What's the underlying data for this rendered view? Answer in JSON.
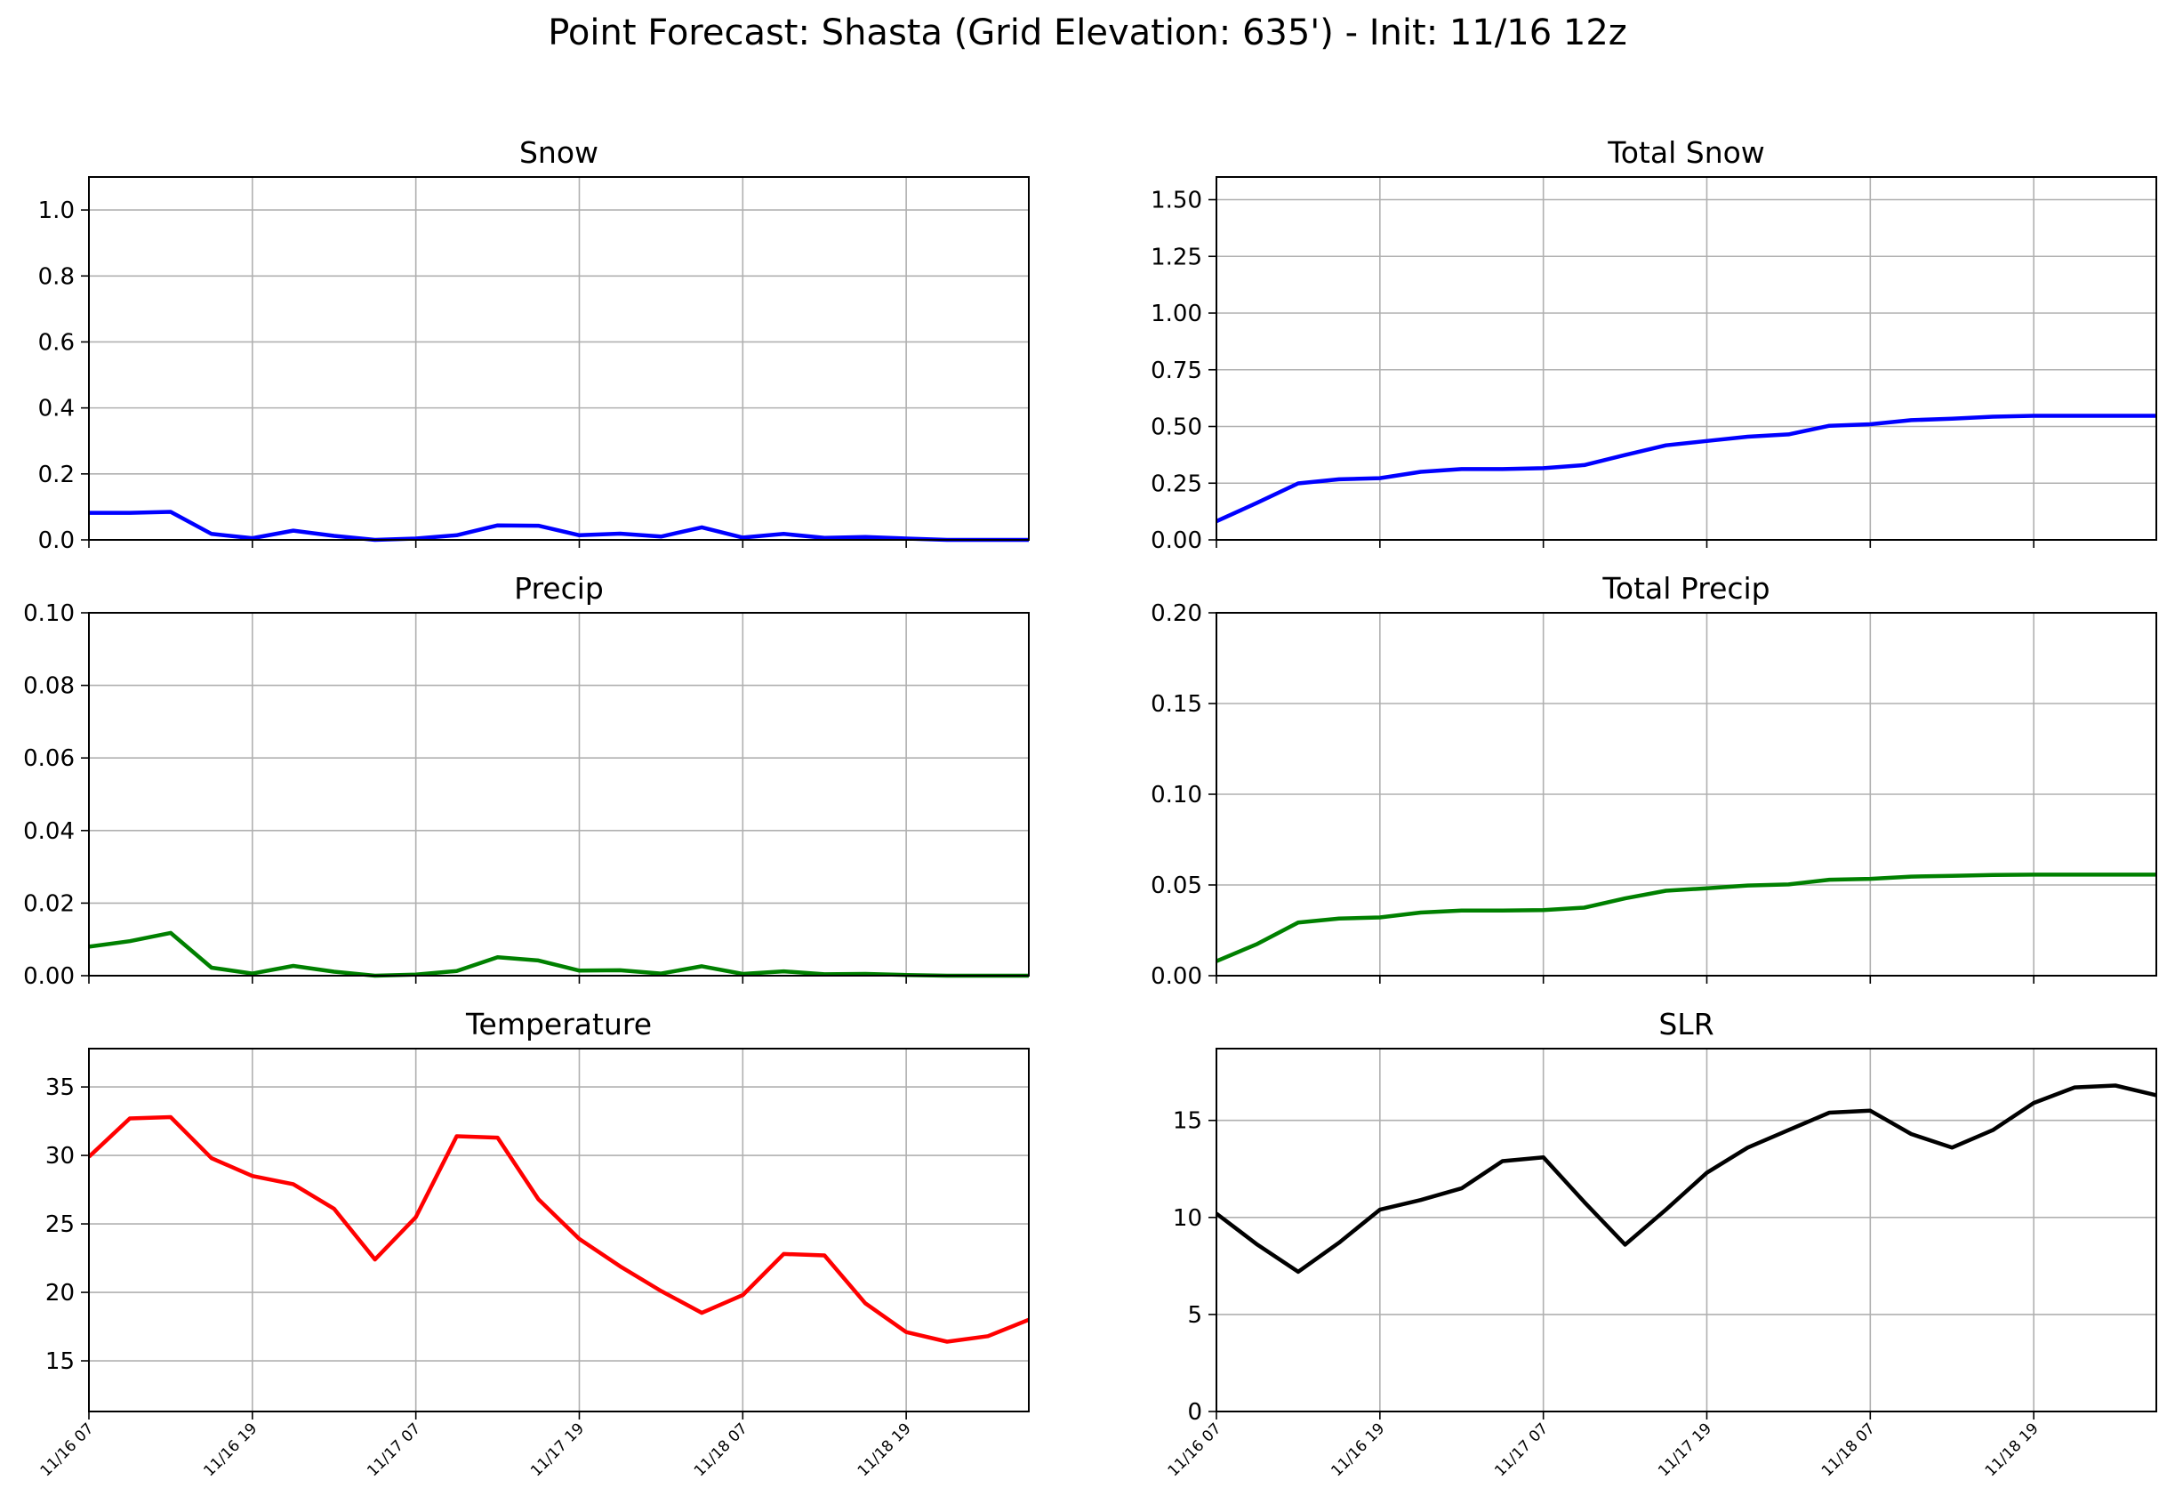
{
  "figure": {
    "title": "Point Forecast: Shasta (Grid Elevation: 635') - Init: 11/16 12z",
    "x_tick_labels": [
      "11/16 07",
      "11/16 19",
      "11/17 07",
      "11/17 19",
      "11/18 07",
      "11/18 19"
    ]
  },
  "chart_data": [
    {
      "id": "snow",
      "type": "line",
      "title": "Snow",
      "color": "#0000ff",
      "grid": true,
      "xlim": [
        0,
        69
      ],
      "ylim": [
        0,
        1.1
      ],
      "yticks": [
        0,
        0.2,
        0.4,
        0.6,
        0.8,
        1.0
      ],
      "ytick_labels": [
        "0.0",
        "0.2",
        "0.4",
        "0.6",
        "0.8",
        "1.0"
      ],
      "x_hours": [
        0,
        3,
        6,
        9,
        12,
        15,
        18,
        21,
        24,
        27,
        30,
        33,
        36,
        39,
        42,
        45,
        48,
        51,
        54,
        57,
        60,
        63,
        66,
        69
      ],
      "values": [
        0.082,
        0.082,
        0.085,
        0.018,
        0.005,
        0.028,
        0.012,
        0.0,
        0.004,
        0.014,
        0.044,
        0.043,
        0.014,
        0.019,
        0.01,
        0.038,
        0.007,
        0.018,
        0.006,
        0.009,
        0.004,
        0.0,
        0.0,
        0.0
      ],
      "show_xlabels": false
    },
    {
      "id": "total-snow",
      "type": "line",
      "title": "Total Snow",
      "color": "#0000ff",
      "grid": true,
      "xlim": [
        0,
        69
      ],
      "ylim": [
        0,
        1.6
      ],
      "yticks": [
        0,
        0.25,
        0.5,
        0.75,
        1.0,
        1.25,
        1.5
      ],
      "ytick_labels": [
        "0.00",
        "0.25",
        "0.50",
        "0.75",
        "1.00",
        "1.25",
        "1.50"
      ],
      "x_hours": [
        0,
        3,
        6,
        9,
        12,
        15,
        18,
        21,
        24,
        27,
        30,
        33,
        36,
        39,
        42,
        45,
        48,
        51,
        54,
        57,
        60,
        63,
        66,
        69
      ],
      "values": [
        0.082,
        0.164,
        0.249,
        0.267,
        0.272,
        0.3,
        0.312,
        0.312,
        0.316,
        0.33,
        0.374,
        0.417,
        0.436,
        0.455,
        0.465,
        0.503,
        0.51,
        0.528,
        0.534,
        0.543,
        0.547,
        0.547,
        0.547,
        0.547
      ],
      "show_xlabels": false
    },
    {
      "id": "precip",
      "type": "line",
      "title": "Precip",
      "color": "#008000",
      "grid": true,
      "xlim": [
        0,
        69
      ],
      "ylim": [
        0,
        0.1
      ],
      "yticks": [
        0,
        0.02,
        0.04,
        0.06,
        0.08,
        0.1
      ],
      "ytick_labels": [
        "0.00",
        "0.02",
        "0.04",
        "0.06",
        "0.08",
        "0.10"
      ],
      "x_hours": [
        0,
        3,
        6,
        9,
        12,
        15,
        18,
        21,
        24,
        27,
        30,
        33,
        36,
        39,
        42,
        45,
        48,
        51,
        54,
        57,
        60,
        63,
        66,
        69
      ],
      "values": [
        0.008,
        0.0095,
        0.0118,
        0.0022,
        0.0006,
        0.0027,
        0.0011,
        0.0,
        0.0003,
        0.0013,
        0.0051,
        0.0042,
        0.0014,
        0.0015,
        0.0006,
        0.0026,
        0.0005,
        0.0012,
        0.0004,
        0.0005,
        0.0002,
        0.0,
        0.0,
        0.0
      ],
      "show_xlabels": false
    },
    {
      "id": "total-precip",
      "type": "line",
      "title": "Total Precip",
      "color": "#008000",
      "grid": true,
      "xlim": [
        0,
        69
      ],
      "ylim": [
        0,
        0.2
      ],
      "yticks": [
        0,
        0.05,
        0.1,
        0.15,
        0.2
      ],
      "ytick_labels": [
        "0.00",
        "0.05",
        "0.10",
        "0.15",
        "0.20"
      ],
      "x_hours": [
        0,
        3,
        6,
        9,
        12,
        15,
        18,
        21,
        24,
        27,
        30,
        33,
        36,
        39,
        42,
        45,
        48,
        51,
        54,
        57,
        60,
        63,
        66,
        69
      ],
      "values": [
        0.008,
        0.0175,
        0.0293,
        0.0315,
        0.0321,
        0.0348,
        0.0359,
        0.0359,
        0.0362,
        0.0375,
        0.0426,
        0.0468,
        0.0482,
        0.0497,
        0.0503,
        0.0529,
        0.0534,
        0.0546,
        0.055,
        0.0555,
        0.0557,
        0.0557,
        0.0557,
        0.0557
      ],
      "show_xlabels": false
    },
    {
      "id": "temperature",
      "type": "line",
      "title": "Temperature",
      "color": "#ff0000",
      "grid": true,
      "xlim": [
        0,
        69
      ],
      "ylim": [
        11.3,
        37.8
      ],
      "yticks": [
        15,
        20,
        25,
        30,
        35
      ],
      "ytick_labels": [
        "15",
        "20",
        "25",
        "30",
        "35"
      ],
      "x_hours": [
        0,
        3,
        6,
        9,
        12,
        15,
        18,
        21,
        24,
        27,
        30,
        33,
        36,
        39,
        42,
        45,
        48,
        51,
        54,
        57,
        60,
        63,
        66,
        69
      ],
      "values": [
        29.9,
        32.7,
        32.8,
        29.8,
        28.5,
        27.9,
        26.1,
        22.4,
        25.5,
        31.4,
        31.3,
        26.8,
        23.9,
        21.9,
        20.1,
        18.5,
        19.8,
        22.8,
        22.7,
        19.2,
        17.1,
        16.4,
        16.8,
        18.0
      ],
      "show_xlabels": true
    },
    {
      "id": "slr",
      "type": "line",
      "title": "SLR",
      "color": "#000000",
      "grid": true,
      "xlim": [
        0,
        69
      ],
      "ylim": [
        0,
        18.7
      ],
      "yticks": [
        0,
        5,
        10,
        15
      ],
      "ytick_labels": [
        "0",
        "5",
        "10",
        "15"
      ],
      "x_hours": [
        0,
        3,
        6,
        9,
        12,
        15,
        18,
        21,
        24,
        27,
        30,
        33,
        36,
        39,
        42,
        45,
        48,
        51,
        54,
        57,
        60,
        63,
        66,
        69
      ],
      "values": [
        10.2,
        8.6,
        7.2,
        8.7,
        10.4,
        10.9,
        11.5,
        12.9,
        13.1,
        10.8,
        8.6,
        10.4,
        12.3,
        13.6,
        14.5,
        15.4,
        15.5,
        14.3,
        13.6,
        14.5,
        15.9,
        16.7,
        16.8,
        16.3
      ],
      "show_xlabels": true
    }
  ]
}
